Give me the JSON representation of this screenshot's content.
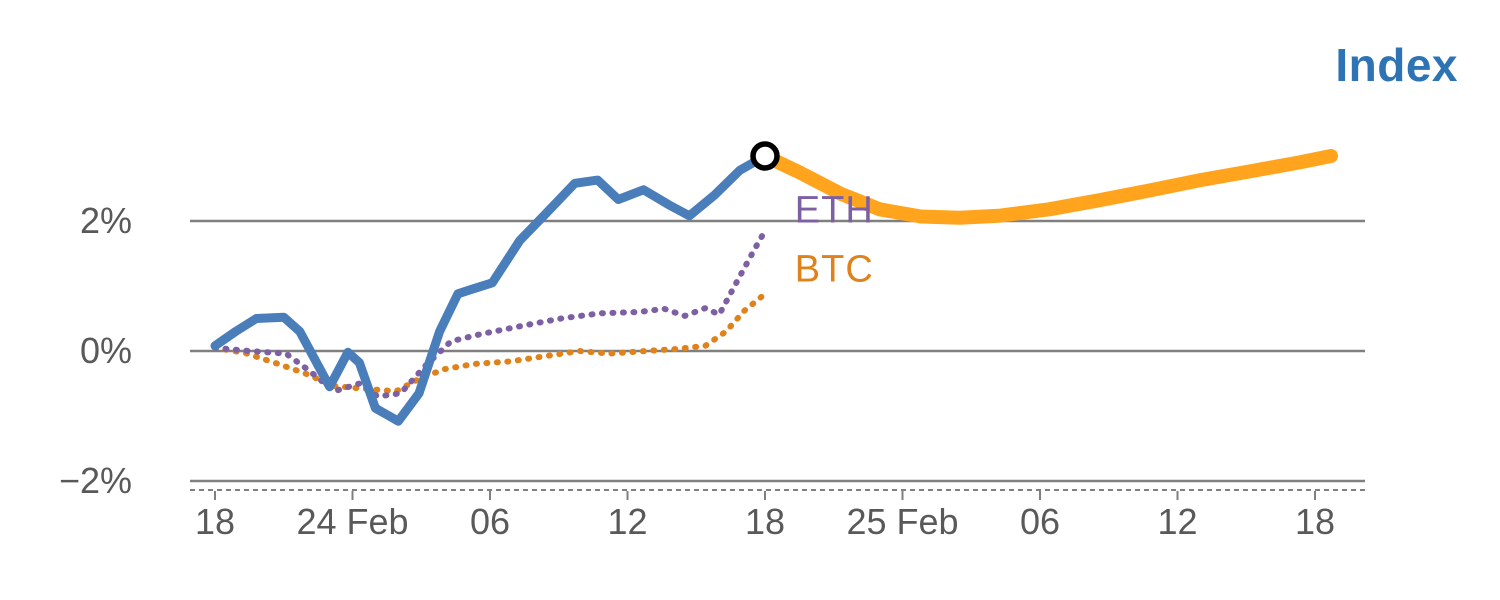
{
  "chart_data": {
    "type": "line",
    "title": "Index",
    "title_color": "#2E74B5",
    "grid_color": "#808080",
    "axis_text_color": "#595959",
    "x_axis": {
      "unit": "hours",
      "range": [
        0,
        48
      ],
      "note": "time of day across 24 Feb and 25 Feb"
    },
    "y_axis": {
      "unit": "percent",
      "range": [
        -2.2,
        3.3
      ],
      "grid": true
    },
    "legend_position": "inline-annotations",
    "y_ticks": [
      {
        "value": 2,
        "label": "2%"
      },
      {
        "value": 0,
        "label": "0%"
      },
      {
        "value": -2,
        "label": "−2%"
      }
    ],
    "x_ticks": [
      {
        "t": 0,
        "label": "18"
      },
      {
        "t": 6,
        "label": "24 Feb"
      },
      {
        "t": 12,
        "label": "06"
      },
      {
        "t": 18,
        "label": "12"
      },
      {
        "t": 24,
        "label": "18"
      },
      {
        "t": 30,
        "label": "25 Feb"
      },
      {
        "t": 36,
        "label": "06"
      },
      {
        "t": 42,
        "label": "12"
      },
      {
        "t": 48,
        "label": "18"
      }
    ],
    "series": [
      {
        "id": "btc",
        "name": "BTC",
        "kind": "history",
        "color": "#E0821B",
        "style": "dotted",
        "width": 6,
        "points": [
          [
            0,
            0.05
          ],
          [
            1.3,
            -0.03
          ],
          [
            2.6,
            -0.18
          ],
          [
            3.9,
            -0.34
          ],
          [
            5.2,
            -0.54
          ],
          [
            6.5,
            -0.58
          ],
          [
            7.9,
            -0.62
          ],
          [
            8.9,
            -0.43
          ],
          [
            10,
            -0.28
          ],
          [
            11.3,
            -0.2
          ],
          [
            12.9,
            -0.16
          ],
          [
            14.4,
            -0.08
          ],
          [
            15.9,
            0
          ],
          [
            17.2,
            -0.04
          ],
          [
            18.8,
            0
          ],
          [
            20.1,
            0.03
          ],
          [
            21.4,
            0.08
          ],
          [
            22.3,
            0.3
          ],
          [
            23.1,
            0.62
          ],
          [
            23.9,
            0.85
          ]
        ]
      },
      {
        "id": "eth",
        "name": "ETH",
        "kind": "history",
        "color": "#7D60A3",
        "style": "dotted",
        "width": 6,
        "points": [
          [
            0,
            0.05
          ],
          [
            1.5,
            0
          ],
          [
            3.1,
            -0.04
          ],
          [
            4.1,
            -0.3
          ],
          [
            5.2,
            -0.62
          ],
          [
            6.3,
            -0.5
          ],
          [
            7.1,
            -0.7
          ],
          [
            8.1,
            -0.65
          ],
          [
            9.2,
            -0.22
          ],
          [
            10.3,
            0.15
          ],
          [
            11.6,
            0.26
          ],
          [
            13.3,
            0.38
          ],
          [
            15.1,
            0.5
          ],
          [
            16.8,
            0.58
          ],
          [
            18.5,
            0.6
          ],
          [
            19.6,
            0.65
          ],
          [
            20.5,
            0.54
          ],
          [
            21.4,
            0.66
          ],
          [
            22,
            0.56
          ],
          [
            22.9,
            1.15
          ],
          [
            23.6,
            1.6
          ],
          [
            24,
            1.85
          ]
        ]
      },
      {
        "id": "index",
        "name": "Index",
        "kind": "history",
        "color": "#4A7EBB",
        "style": "solid",
        "width": 9,
        "points": [
          [
            0,
            0.08
          ],
          [
            0.9,
            0.3
          ],
          [
            1.8,
            0.5
          ],
          [
            3,
            0.52
          ],
          [
            3.7,
            0.3
          ],
          [
            5,
            -0.55
          ],
          [
            5.8,
            -0.02
          ],
          [
            6.3,
            -0.18
          ],
          [
            7,
            -0.88
          ],
          [
            8,
            -1.08
          ],
          [
            8.9,
            -0.65
          ],
          [
            9.8,
            0.3
          ],
          [
            10.6,
            0.88
          ],
          [
            11.2,
            0.95
          ],
          [
            12.1,
            1.05
          ],
          [
            13.3,
            1.7
          ],
          [
            14.4,
            2.1
          ],
          [
            15.7,
            2.58
          ],
          [
            16.7,
            2.63
          ],
          [
            17.6,
            2.33
          ],
          [
            18.7,
            2.48
          ],
          [
            19.8,
            2.25
          ],
          [
            20.7,
            2.08
          ],
          [
            21.8,
            2.4
          ],
          [
            22.9,
            2.78
          ],
          [
            24,
            3.0
          ]
        ]
      },
      {
        "id": "index-forecast",
        "name": "Index forecast",
        "kind": "forecast",
        "color": "#FFA41C",
        "style": "solid",
        "width": 14,
        "points": [
          [
            24,
            3.0
          ],
          [
            25.5,
            2.75
          ],
          [
            27.3,
            2.42
          ],
          [
            29,
            2.18
          ],
          [
            30.8,
            2.07
          ],
          [
            32.5,
            2.05
          ],
          [
            34.2,
            2.08
          ],
          [
            36.4,
            2.18
          ],
          [
            38.6,
            2.32
          ],
          [
            40.8,
            2.47
          ],
          [
            43,
            2.63
          ],
          [
            45.1,
            2.76
          ],
          [
            47.3,
            2.9
          ],
          [
            48.7,
            3.0
          ]
        ]
      }
    ],
    "marker": {
      "series": "index",
      "t": 24,
      "value": 3.0,
      "shape": "open-circle",
      "color": "#000000"
    },
    "annotations": [
      {
        "text": "ETH",
        "color": "#7D60A3",
        "t": 25.3,
        "value": 2.15
      },
      {
        "text": "BTC",
        "color": "#E0821B",
        "t": 25.3,
        "value": 1.25
      }
    ]
  }
}
